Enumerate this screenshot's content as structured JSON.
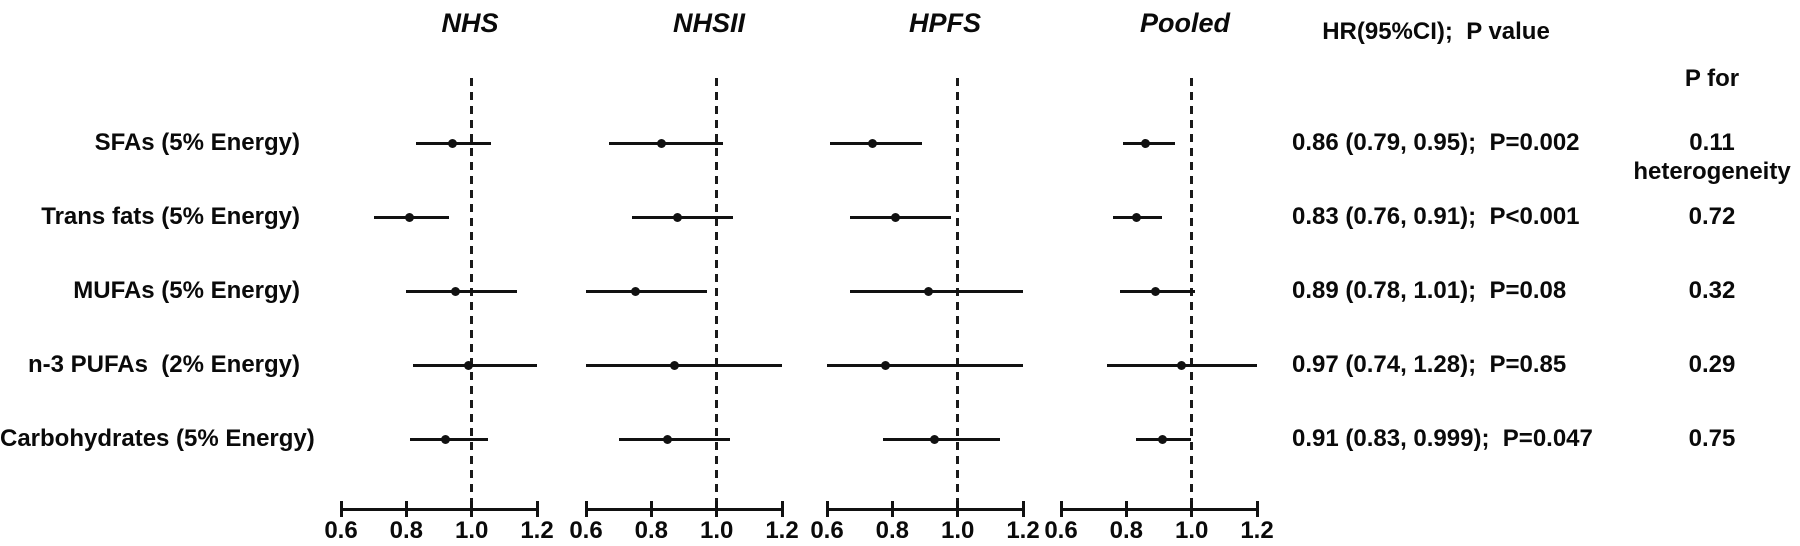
{
  "header": {
    "hr_label": "HR(95%CI);  P value",
    "het_line1": "P for",
    "het_line2": "heterogeneity"
  },
  "chart_data": {
    "type": "forest",
    "axis": {
      "min": 0.6,
      "max": 1.2,
      "tick_values": [
        0.6,
        0.8,
        1.0,
        1.2
      ],
      "tick_labels": [
        "0.6",
        "0.8",
        "1.0",
        "1.2"
      ],
      "reference_line": 1.0
    },
    "studies": [
      "NHS",
      "NHSII",
      "HPFS",
      "Pooled"
    ],
    "rows": [
      {
        "label": "SFAs (5% Energy)",
        "estimates": [
          {
            "hr": 0.94,
            "lo": 0.83,
            "hi": 1.06
          },
          {
            "hr": 0.83,
            "lo": 0.67,
            "hi": 1.02
          },
          {
            "hr": 0.74,
            "lo": 0.61,
            "hi": 0.89
          },
          {
            "hr": 0.86,
            "lo": 0.79,
            "hi": 0.95
          }
        ],
        "hr_text": "0.86 (0.79, 0.95);  P=0.002",
        "p_heterogeneity": "0.11"
      },
      {
        "label": "Trans fats (5% Energy)",
        "estimates": [
          {
            "hr": 0.81,
            "lo": 0.7,
            "hi": 0.93
          },
          {
            "hr": 0.88,
            "lo": 0.74,
            "hi": 1.05
          },
          {
            "hr": 0.81,
            "lo": 0.67,
            "hi": 0.98
          },
          {
            "hr": 0.83,
            "lo": 0.76,
            "hi": 0.91
          }
        ],
        "hr_text": "0.83 (0.76, 0.91);  P<0.001",
        "p_heterogeneity": "0.72"
      },
      {
        "label": "MUFAs (5% Energy)",
        "estimates": [
          {
            "hr": 0.95,
            "lo": 0.8,
            "hi": 1.14
          },
          {
            "hr": 0.75,
            "lo": 0.6,
            "hi": 0.97
          },
          {
            "hr": 0.91,
            "lo": 0.67,
            "hi": 1.2
          },
          {
            "hr": 0.89,
            "lo": 0.78,
            "hi": 1.01
          }
        ],
        "hr_text": "0.89 (0.78, 1.01);  P=0.08",
        "p_heterogeneity": "0.32"
      },
      {
        "label": "n-3 PUFAs  (2% Energy)",
        "estimates": [
          {
            "hr": 0.99,
            "lo": 0.82,
            "hi": 1.2
          },
          {
            "hr": 0.87,
            "lo": 0.6,
            "hi": 1.21
          },
          {
            "hr": 0.78,
            "lo": 0.6,
            "hi": 1.21
          },
          {
            "hr": 0.97,
            "lo": 0.74,
            "hi": 1.28
          }
        ],
        "hr_text": "0.97 (0.74, 1.28);  P=0.85",
        "p_heterogeneity": "0.29"
      },
      {
        "label": "Carbohydrates (5% Energy)",
        "estimates": [
          {
            "hr": 0.92,
            "lo": 0.81,
            "hi": 1.05
          },
          {
            "hr": 0.85,
            "lo": 0.7,
            "hi": 1.04
          },
          {
            "hr": 0.93,
            "lo": 0.77,
            "hi": 1.13
          },
          {
            "hr": 0.91,
            "lo": 0.83,
            "hi": 0.999
          }
        ],
        "hr_text": "0.91 (0.83, 0.999);  P=0.047",
        "p_heterogeneity": "0.75"
      }
    ]
  }
}
